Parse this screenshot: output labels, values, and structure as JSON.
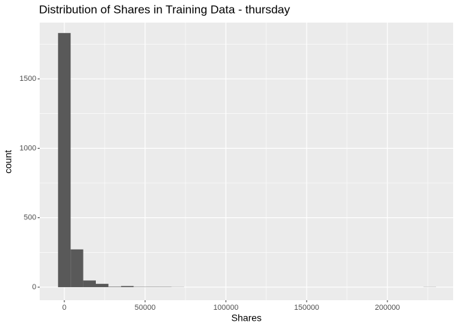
{
  "chart_data": {
    "type": "histogram",
    "title": "Distribution of Shares in Training Data -  thursday",
    "x_label": "Shares",
    "y_label": "count",
    "bins": [
      -3900,
      3900,
      11700,
      19500,
      27300,
      35100,
      42900,
      50700,
      58500,
      66300,
      74100,
      81900,
      89700,
      97500,
      105300,
      113100,
      120900,
      128700,
      136500,
      144300,
      152100,
      159900,
      167700,
      175500,
      183300,
      191100,
      198900,
      206700,
      214500,
      222300,
      230100
    ],
    "values": [
      1830,
      272,
      48,
      24,
      3,
      8,
      2,
      2,
      2,
      1,
      0,
      0,
      0,
      0,
      0,
      0,
      0,
      0,
      0,
      0,
      0,
      0,
      0,
      0,
      0,
      0,
      0,
      0,
      0,
      1
    ],
    "color": "#595959",
    "xlim": [
      -15250,
      240700
    ],
    "ylim": [
      -94,
      1905
    ],
    "xticks": [
      0,
      50000,
      100000,
      150000,
      200000
    ],
    "yticks": [
      0,
      500,
      1000,
      1500
    ],
    "x_minor_ticks": [
      25000,
      75000,
      125000,
      175000,
      225000
    ],
    "y_minor_ticks": [
      250,
      750,
      1250,
      1750
    ],
    "grid": true
  }
}
